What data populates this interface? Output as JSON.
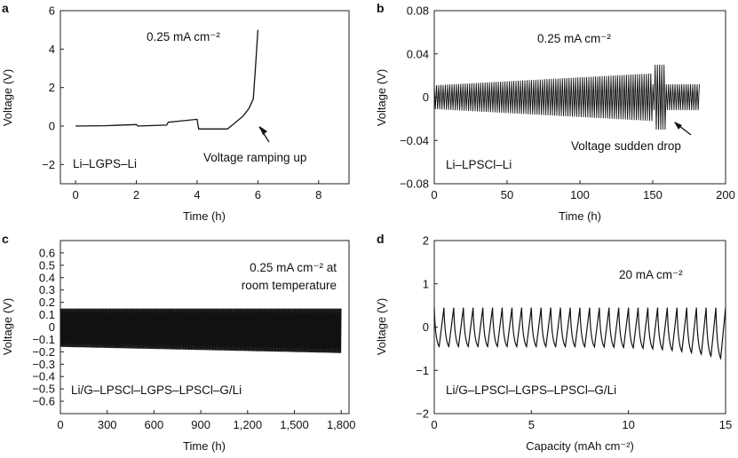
{
  "chart_data": [
    {
      "panel": "a",
      "type": "line",
      "xlabel": "Time (h)",
      "ylabel": "Voltage (V)",
      "xlim": [
        -0.5,
        9
      ],
      "ylim": [
        -3,
        6
      ],
      "xticks": [
        0,
        2,
        4,
        6,
        8
      ],
      "xtick_labels": [
        "0",
        "2",
        "4",
        "6",
        "8"
      ],
      "yticks": [
        -2,
        0,
        2,
        4,
        6
      ],
      "ytick_labels": [
        "−2",
        "0",
        "2",
        "4",
        "6"
      ],
      "annotations": {
        "current": "0.25 mA cm⁻²",
        "cell": "Li–LGPS–Li",
        "arrow_label": "Voltage ramping up"
      },
      "series": [
        {
          "x": [
            0,
            1,
            2,
            2.05,
            3,
            3.05,
            4,
            4.05,
            5,
            5.2,
            5.5,
            5.7,
            5.85,
            5.92,
            6.0
          ],
          "y": [
            0,
            0.02,
            0.08,
            0,
            0.05,
            0.2,
            0.35,
            -0.15,
            -0.15,
            0.1,
            0.5,
            0.9,
            1.4,
            3.0,
            5.0
          ]
        }
      ]
    },
    {
      "panel": "b",
      "type": "line",
      "xlabel": "Time (h)",
      "ylabel": "Voltage (V)",
      "xlim": [
        0,
        200
      ],
      "ylim": [
        -0.08,
        0.08
      ],
      "xticks": [
        0,
        50,
        100,
        150,
        200
      ],
      "xtick_labels": [
        "0",
        "50",
        "100",
        "150",
        "200"
      ],
      "yticks": [
        -0.08,
        -0.04,
        0,
        0.04,
        0.08
      ],
      "ytick_labels": [
        "−0.08",
        "−0.04",
        "0",
        "0.04",
        "0.08"
      ],
      "annotations": {
        "current": "0.25 mA cm⁻²",
        "cell": "Li–LPSCl–Li",
        "arrow_label": "Voltage sudden drop"
      },
      "oscillation": {
        "x_start": 0,
        "x_end": 182,
        "cycles": 120,
        "amplitude_start": 0.011,
        "amplitude_peak": 0.022,
        "peak_at": 150,
        "spike_at": 155,
        "spike_amplitude": 0.03,
        "amplitude_end": 0.012
      }
    },
    {
      "panel": "c",
      "type": "line",
      "xlabel": "Time (h)",
      "ylabel": "Voltage (V)",
      "xlim": [
        0,
        1850
      ],
      "ylim": [
        -0.7,
        0.7
      ],
      "xticks": [
        0,
        300,
        600,
        900,
        1200,
        1500,
        1800
      ],
      "xtick_labels": [
        "0",
        "300",
        "600",
        "900",
        "1,200",
        "1,500",
        "1,800"
      ],
      "yticks": [
        -0.6,
        -0.5,
        -0.4,
        -0.3,
        -0.2,
        -0.1,
        0,
        0.1,
        0.2,
        0.3,
        0.4,
        0.5,
        0.6
      ],
      "ytick_labels": [
        "−0.6",
        "−0.5",
        "−0.4",
        "−0.3",
        "−0.2",
        "−0.1",
        "0",
        "0.1",
        "0.2",
        "0.3",
        "0.4",
        "0.5",
        "0.6"
      ],
      "annotations": {
        "current_line1": "0.25 mA cm⁻² at",
        "current_line2": "room temperature",
        "cell": "Li/G–LPSCl–LGPS–LPSCl–G/Li"
      },
      "oscillation": {
        "x_start": 0,
        "x_end": 1800,
        "cycles": 420,
        "upper": 0.15,
        "lower_start": -0.16,
        "lower_end": -0.21
      }
    },
    {
      "panel": "d",
      "type": "line",
      "xlabel": "Capacity (mAh cm⁻²)",
      "ylabel": "Voltage (V)",
      "xlim": [
        0,
        15
      ],
      "ylim": [
        -2,
        2
      ],
      "xticks": [
        0,
        5,
        10,
        15
      ],
      "xtick_labels": [
        "0",
        "5",
        "10",
        "15"
      ],
      "yticks": [
        -2,
        -1,
        0,
        1,
        2
      ],
      "ytick_labels": [
        "−2",
        "−1",
        "0",
        "1",
        "2"
      ],
      "annotations": {
        "current": "20 mA cm⁻²",
        "cell": "Li/G–LPSCl–LGPS–LPSCl–G/Li"
      },
      "oscillation": {
        "x_start": 0,
        "x_end": 15,
        "cycles": 30,
        "upper": 0.45,
        "lower": -0.45,
        "lower_end": -0.75
      }
    }
  ]
}
